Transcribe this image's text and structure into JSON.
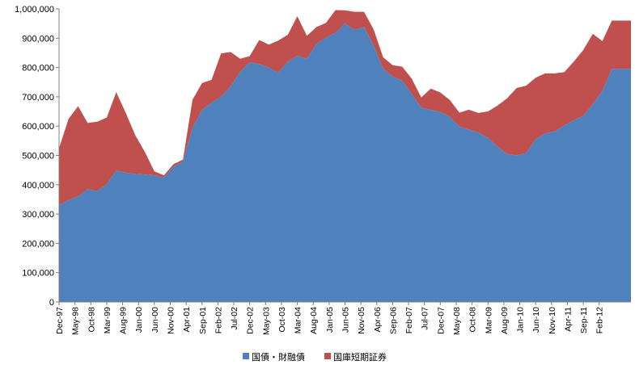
{
  "chart_data": {
    "type": "area",
    "stacked": true,
    "title": "",
    "xlabel": "",
    "ylabel": "",
    "ylim": [
      0,
      1000000
    ],
    "yticks": [
      "0",
      "100,000",
      "200,000",
      "300,000",
      "400,000",
      "500,000",
      "600,000",
      "700,000",
      "800,000",
      "900,000",
      "1,000,000"
    ],
    "grid": false,
    "legend_position": "bottom",
    "x_tick_labels": [
      "Dec-97",
      "May-98",
      "Oct-98",
      "Mar-99",
      "Aug-99",
      "Jan-00",
      "Jun-00",
      "Nov-00",
      "Apr-01",
      "Sep-01",
      "Feb-02",
      "Jul-02",
      "Dec-02",
      "May-03",
      "Oct-03",
      "Mar-04",
      "Aug-04",
      "Jan-05",
      "Jun-05",
      "Nov-05",
      "Apr-06",
      "Sep-06",
      "Feb-07",
      "Jul-07",
      "Dec-07",
      "May-08",
      "Oct-08",
      "Mar-09",
      "Aug-09",
      "Jan-10",
      "Jun-10",
      "Nov-10",
      "Apr-11",
      "Sep-11",
      "Feb-12"
    ],
    "x": [
      "Dec-97",
      "Mar-98",
      "Jun-98",
      "Sep-98",
      "Dec-98",
      "Mar-99",
      "Jun-99",
      "Sep-99",
      "Dec-99",
      "Mar-00",
      "Jun-00",
      "Sep-00",
      "Dec-00",
      "Mar-01",
      "Jun-01",
      "Sep-01",
      "Dec-01",
      "Mar-02",
      "Jun-02",
      "Sep-02",
      "Dec-02",
      "Mar-03",
      "Jun-03",
      "Sep-03",
      "Dec-03",
      "Mar-04",
      "Jun-04",
      "Sep-04",
      "Dec-04",
      "Mar-05",
      "Jun-05",
      "Sep-05",
      "Dec-05",
      "Mar-06",
      "Jun-06",
      "Sep-06",
      "Dec-06",
      "Mar-07",
      "Jun-07",
      "Sep-07",
      "Dec-07",
      "Mar-08",
      "Jun-08",
      "Sep-08",
      "Dec-08",
      "Mar-09",
      "Jun-09",
      "Sep-09",
      "Dec-09",
      "Mar-10",
      "Jun-10",
      "Sep-10",
      "Dec-10",
      "Mar-11",
      "Jun-11",
      "Sep-11",
      "Dec-11",
      "Mar-12",
      "Jun-12",
      "Sep-12",
      "Dec-12"
    ],
    "series": [
      {
        "name": "国債・財融債",
        "color": "#4f81bd",
        "values": [
          330000,
          348000,
          360000,
          385000,
          378000,
          402000,
          448000,
          441000,
          437000,
          435000,
          432000,
          424000,
          462000,
          478000,
          595000,
          655000,
          680000,
          700000,
          735000,
          785000,
          817000,
          812000,
          800000,
          782000,
          820000,
          840000,
          830000,
          880000,
          902000,
          918000,
          950000,
          928000,
          938000,
          875000,
          795000,
          770000,
          755000,
          710000,
          663000,
          655000,
          648000,
          632000,
          598000,
          588000,
          578000,
          560000,
          530000,
          505000,
          500000,
          508000,
          555000,
          575000,
          582000,
          602000,
          620000,
          635000,
          675000,
          720000,
          795000,
          795000,
          795000
        ]
      },
      {
        "name": "国庫短期証券",
        "color": "#c0504d",
        "values": [
          195000,
          277000,
          308000,
          226000,
          237000,
          227000,
          268000,
          204000,
          132000,
          77000,
          14000,
          8000,
          8000,
          8000,
          95000,
          92000,
          78000,
          148000,
          118000,
          45000,
          22000,
          82000,
          78000,
          110000,
          92000,
          135000,
          78000,
          58000,
          50000,
          78000,
          45000,
          62000,
          52000,
          55000,
          40000,
          38000,
          48000,
          52000,
          35000,
          73000,
          67000,
          57000,
          48000,
          68000,
          67000,
          90000,
          140000,
          190000,
          230000,
          230000,
          210000,
          205000,
          198000,
          182000,
          200000,
          225000,
          240000,
          170000,
          165000,
          165000,
          165000
        ]
      }
    ]
  }
}
